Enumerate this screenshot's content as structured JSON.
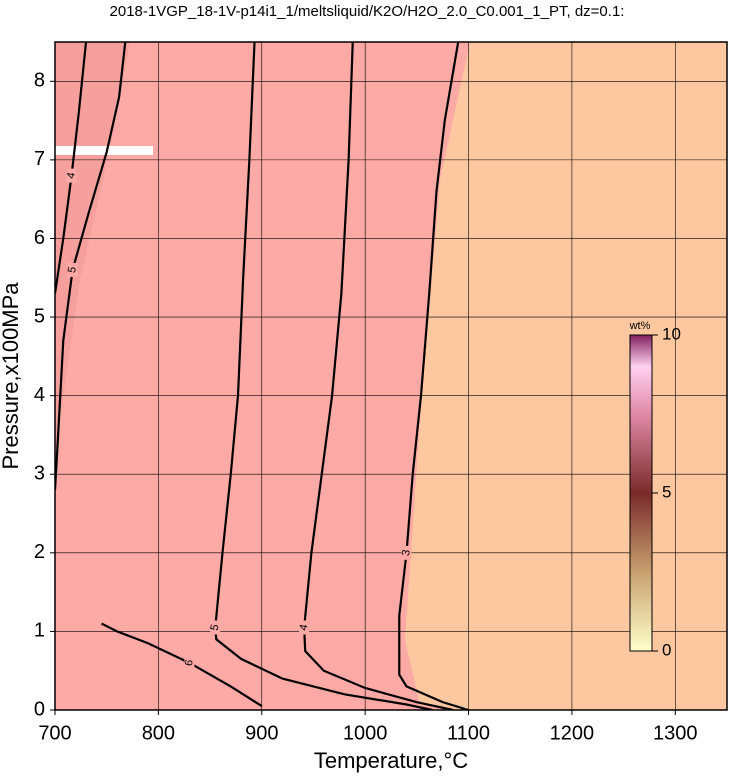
{
  "chart_data": {
    "type": "contour",
    "title": "2018-1VGP_18-1V-p14i1_1/meltsliquid/K2O/H2O_2.0_C0.001_1_PT, dz=0.1:",
    "x_label": "Temperature,°C",
    "y_label": "Pressure,x100MPa",
    "xlim": [
      700,
      1350
    ],
    "ylim": [
      0,
      8.5
    ],
    "xticks": [
      700,
      800,
      900,
      1000,
      1100,
      1200,
      1300
    ],
    "yticks": [
      0,
      1,
      2,
      3,
      4,
      5,
      6,
      7,
      8
    ],
    "grid": true,
    "contours": [
      {
        "level": 5,
        "x": [
          893,
          888,
          882,
          877,
          870,
          862,
          855,
          856,
          880,
          920,
          980,
          1040,
          1065
        ],
        "y": [
          8.5,
          7,
          5.5,
          4,
          3,
          2,
          1.05,
          0.9,
          0.65,
          0.4,
          0.2,
          0.07,
          0
        ]
      },
      {
        "level": 4,
        "x": [
          988,
          984,
          977,
          968,
          958,
          948,
          941,
          942,
          960,
          1000,
          1050,
          1085
        ],
        "y": [
          8.5,
          7,
          5.3,
          4,
          3,
          2,
          1.05,
          0.75,
          0.5,
          0.28,
          0.1,
          0
        ]
      },
      {
        "level": 3,
        "x": [
          1090,
          1077,
          1069,
          1062,
          1054,
          1046,
          1040,
          1033,
          1033,
          1040,
          1075,
          1100
        ],
        "y": [
          8.5,
          7.5,
          6.6,
          5.3,
          4,
          3,
          2,
          1.2,
          0.45,
          0.3,
          0.1,
          0
        ]
      },
      {
        "level": 5,
        "x": [
          768,
          762,
          750,
          732,
          717,
          708,
          703,
          700
        ],
        "y": [
          8.5,
          7.8,
          7.1,
          6.3,
          5.6,
          4.7,
          3.5,
          2.8
        ]
      },
      {
        "level": 4,
        "x": [
          730,
          723,
          716,
          708,
          700
        ],
        "y": [
          8.5,
          7.6,
          6.8,
          6.0,
          5.3
        ]
      },
      {
        "level": 6,
        "x": [
          745,
          760,
          790,
          830,
          870,
          900
        ],
        "y": [
          1.1,
          1.0,
          0.85,
          0.6,
          0.3,
          0.05
        ]
      }
    ],
    "colorbar": {
      "label": "wt%",
      "lim": [
        0,
        10
      ],
      "ticks": [
        0,
        5,
        10
      ]
    }
  }
}
